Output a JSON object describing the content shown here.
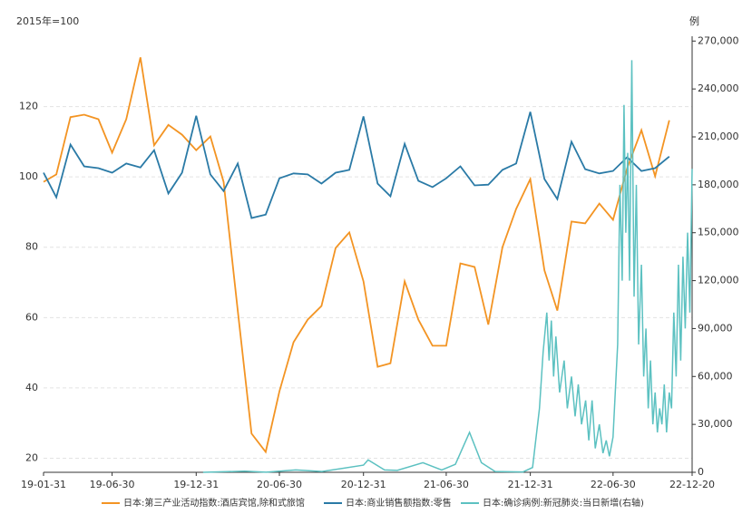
{
  "chart_data": {
    "type": "line",
    "ylabel": "2015年=100",
    "y2label": "例",
    "xlim": [
      "19-01-31",
      "22-12-20"
    ],
    "xticks": [
      "19-01-31",
      "19-06-30",
      "19-12-31",
      "20-06-30",
      "20-12-31",
      "21-06-30",
      "21-12-31",
      "22-06-30",
      "22-12-20"
    ],
    "ylim": [
      16,
      140
    ],
    "yticks": [
      20,
      40,
      60,
      80,
      100,
      120
    ],
    "y2lim": [
      0,
      273000
    ],
    "y2ticks": [
      0,
      {
        "value": 30000,
        "label": "30,000"
      },
      {
        "value": 60000,
        "label": "60,000"
      },
      {
        "value": 90000,
        "label": "90,000"
      },
      {
        "value": 120000,
        "label": "120,000"
      },
      {
        "value": 150000,
        "label": "150,000"
      },
      {
        "value": 180000,
        "label": "180,000"
      },
      {
        "value": 210000,
        "label": "210,000"
      },
      {
        "value": 240000,
        "label": "240,000"
      },
      {
        "value": 270000,
        "label": "270,000"
      }
    ],
    "grid": true,
    "legend": "bottom",
    "series": [
      {
        "name": "日本:第三产业活动指数:酒店宾馆,除和式旅馆",
        "color": "#f39423",
        "x": [
          "19-01-31",
          "19-02-28",
          "19-03-31",
          "19-04-30",
          "19-05-31",
          "19-06-30",
          "19-07-31",
          "19-08-31",
          "19-09-30",
          "19-10-31",
          "19-11-30",
          "19-12-31",
          "20-01-31",
          "20-02-29",
          "20-03-31",
          "20-04-30",
          "20-05-31",
          "20-06-30",
          "20-07-31",
          "20-08-31",
          "20-09-30",
          "20-10-31",
          "20-11-30",
          "20-12-31",
          "21-01-31",
          "21-02-28",
          "21-03-31",
          "21-04-30",
          "21-05-31",
          "21-06-30",
          "21-07-31",
          "21-08-31",
          "21-09-30",
          "21-10-31",
          "21-11-30",
          "21-12-31",
          "22-01-31",
          "22-02-28",
          "22-03-31",
          "22-04-30",
          "22-05-31",
          "22-06-30",
          "22-07-31",
          "22-08-31",
          "22-09-30",
          "22-10-31"
        ],
        "values": [
          98.6,
          100.7,
          117,
          117.7,
          116.4,
          106.9,
          116.4,
          134,
          109,
          114.8,
          112,
          107.6,
          111.5,
          98.6,
          62,
          27,
          21.8,
          39,
          53,
          59.4,
          63.3,
          79.8,
          84.2,
          70.3,
          46,
          47,
          70.3,
          59.4,
          52,
          52,
          75.4,
          74.4,
          58,
          80,
          90.9,
          99.4,
          73.4,
          62,
          87.3,
          86.8,
          92.4,
          87.8,
          102.5,
          113.3,
          100.2,
          116.1
        ]
      },
      {
        "name": "日本:商业销售额指数:零售",
        "color": "#2a7aa6",
        "x": [
          "19-01-31",
          "19-02-28",
          "19-03-31",
          "19-04-30",
          "19-05-31",
          "19-06-30",
          "19-07-31",
          "19-08-31",
          "19-09-30",
          "19-10-31",
          "19-11-30",
          "19-12-31",
          "20-01-31",
          "20-02-29",
          "20-03-31",
          "20-04-30",
          "20-05-31",
          "20-06-30",
          "20-07-31",
          "20-08-31",
          "20-09-30",
          "20-10-31",
          "20-11-30",
          "20-12-31",
          "21-01-31",
          "21-02-28",
          "21-03-31",
          "21-04-30",
          "21-05-31",
          "21-06-30",
          "21-07-31",
          "21-08-31",
          "21-09-30",
          "21-10-31",
          "21-11-30",
          "21-12-31",
          "22-01-31",
          "22-02-28",
          "22-03-31",
          "22-04-30",
          "22-05-31",
          "22-06-30",
          "22-07-31",
          "22-08-31",
          "22-09-30",
          "22-10-31"
        ],
        "values": [
          101.2,
          94.2,
          109.2,
          103,
          102.5,
          101.2,
          103.8,
          102.7,
          107.6,
          95.3,
          101.2,
          117.4,
          100.7,
          96,
          103.8,
          88.3,
          89.3,
          99.6,
          101,
          100.7,
          98.1,
          101.2,
          102,
          117.2,
          98.1,
          94.5,
          109.4,
          98.9,
          97.1,
          99.6,
          103,
          97.6,
          97.8,
          102,
          103.8,
          118.5,
          99.4,
          93.7,
          110,
          102.2,
          101,
          101.7,
          105.6,
          101.7,
          102.5,
          105.8
        ]
      },
      {
        "name": "日本:确诊病例:新冠肺炎:当日新增(右轴)",
        "color": "#5cc1c1",
        "axis": "y2",
        "x": [
          "20-01-15",
          "20-04-15",
          "20-06-01",
          "20-08-05",
          "20-10-01",
          "20-12-31",
          "21-01-10",
          "21-02-15",
          "21-03-15",
          "21-05-10",
          "21-06-20",
          "21-07-20",
          "21-08-20",
          "21-09-15",
          "21-10-15",
          "21-12-15",
          "22-01-05",
          "22-01-20",
          "22-01-28",
          "22-02-05",
          "22-02-10",
          "22-02-15",
          "22-02-20",
          "22-02-25",
          "22-03-05",
          "22-03-15",
          "22-03-22",
          "22-03-31",
          "22-04-08",
          "22-04-15",
          "22-04-22",
          "22-05-01",
          "22-05-08",
          "22-05-15",
          "22-05-22",
          "22-05-31",
          "22-06-08",
          "22-06-15",
          "22-06-22",
          "22-06-30",
          "22-07-10",
          "22-07-15",
          "22-07-20",
          "22-07-24",
          "22-07-28",
          "22-08-01",
          "22-08-05",
          "22-08-10",
          "22-08-15",
          "22-08-20",
          "22-08-25",
          "22-08-31",
          "22-09-05",
          "22-09-10",
          "22-09-15",
          "22-09-20",
          "22-09-25",
          "22-09-30",
          "22-10-05",
          "22-10-10",
          "22-10-15",
          "22-10-20",
          "22-10-25",
          "22-10-31",
          "22-11-05",
          "22-11-10",
          "22-11-15",
          "22-11-20",
          "22-11-25",
          "22-11-30",
          "22-12-05",
          "22-12-10",
          "22-12-15",
          "22-12-20"
        ],
        "values": [
          0,
          700,
          50,
          1500,
          500,
          4500,
          7800,
          1500,
          1200,
          6000,
          1500,
          5000,
          25000,
          6000,
          500,
          200,
          3000,
          40000,
          75000,
          100000,
          70000,
          95000,
          60000,
          85000,
          50000,
          70000,
          40000,
          60000,
          35000,
          55000,
          30000,
          45000,
          20000,
          45000,
          15000,
          30000,
          12000,
          20000,
          10000,
          22000,
          80000,
          180000,
          120000,
          230000,
          150000,
          200000,
          120000,
          258000,
          110000,
          180000,
          80000,
          130000,
          60000,
          90000,
          40000,
          70000,
          30000,
          50000,
          25000,
          40000,
          30000,
          55000,
          25000,
          50000,
          40000,
          100000,
          60000,
          130000,
          70000,
          135000,
          90000,
          150000,
          100000,
          190000
        ]
      }
    ]
  }
}
